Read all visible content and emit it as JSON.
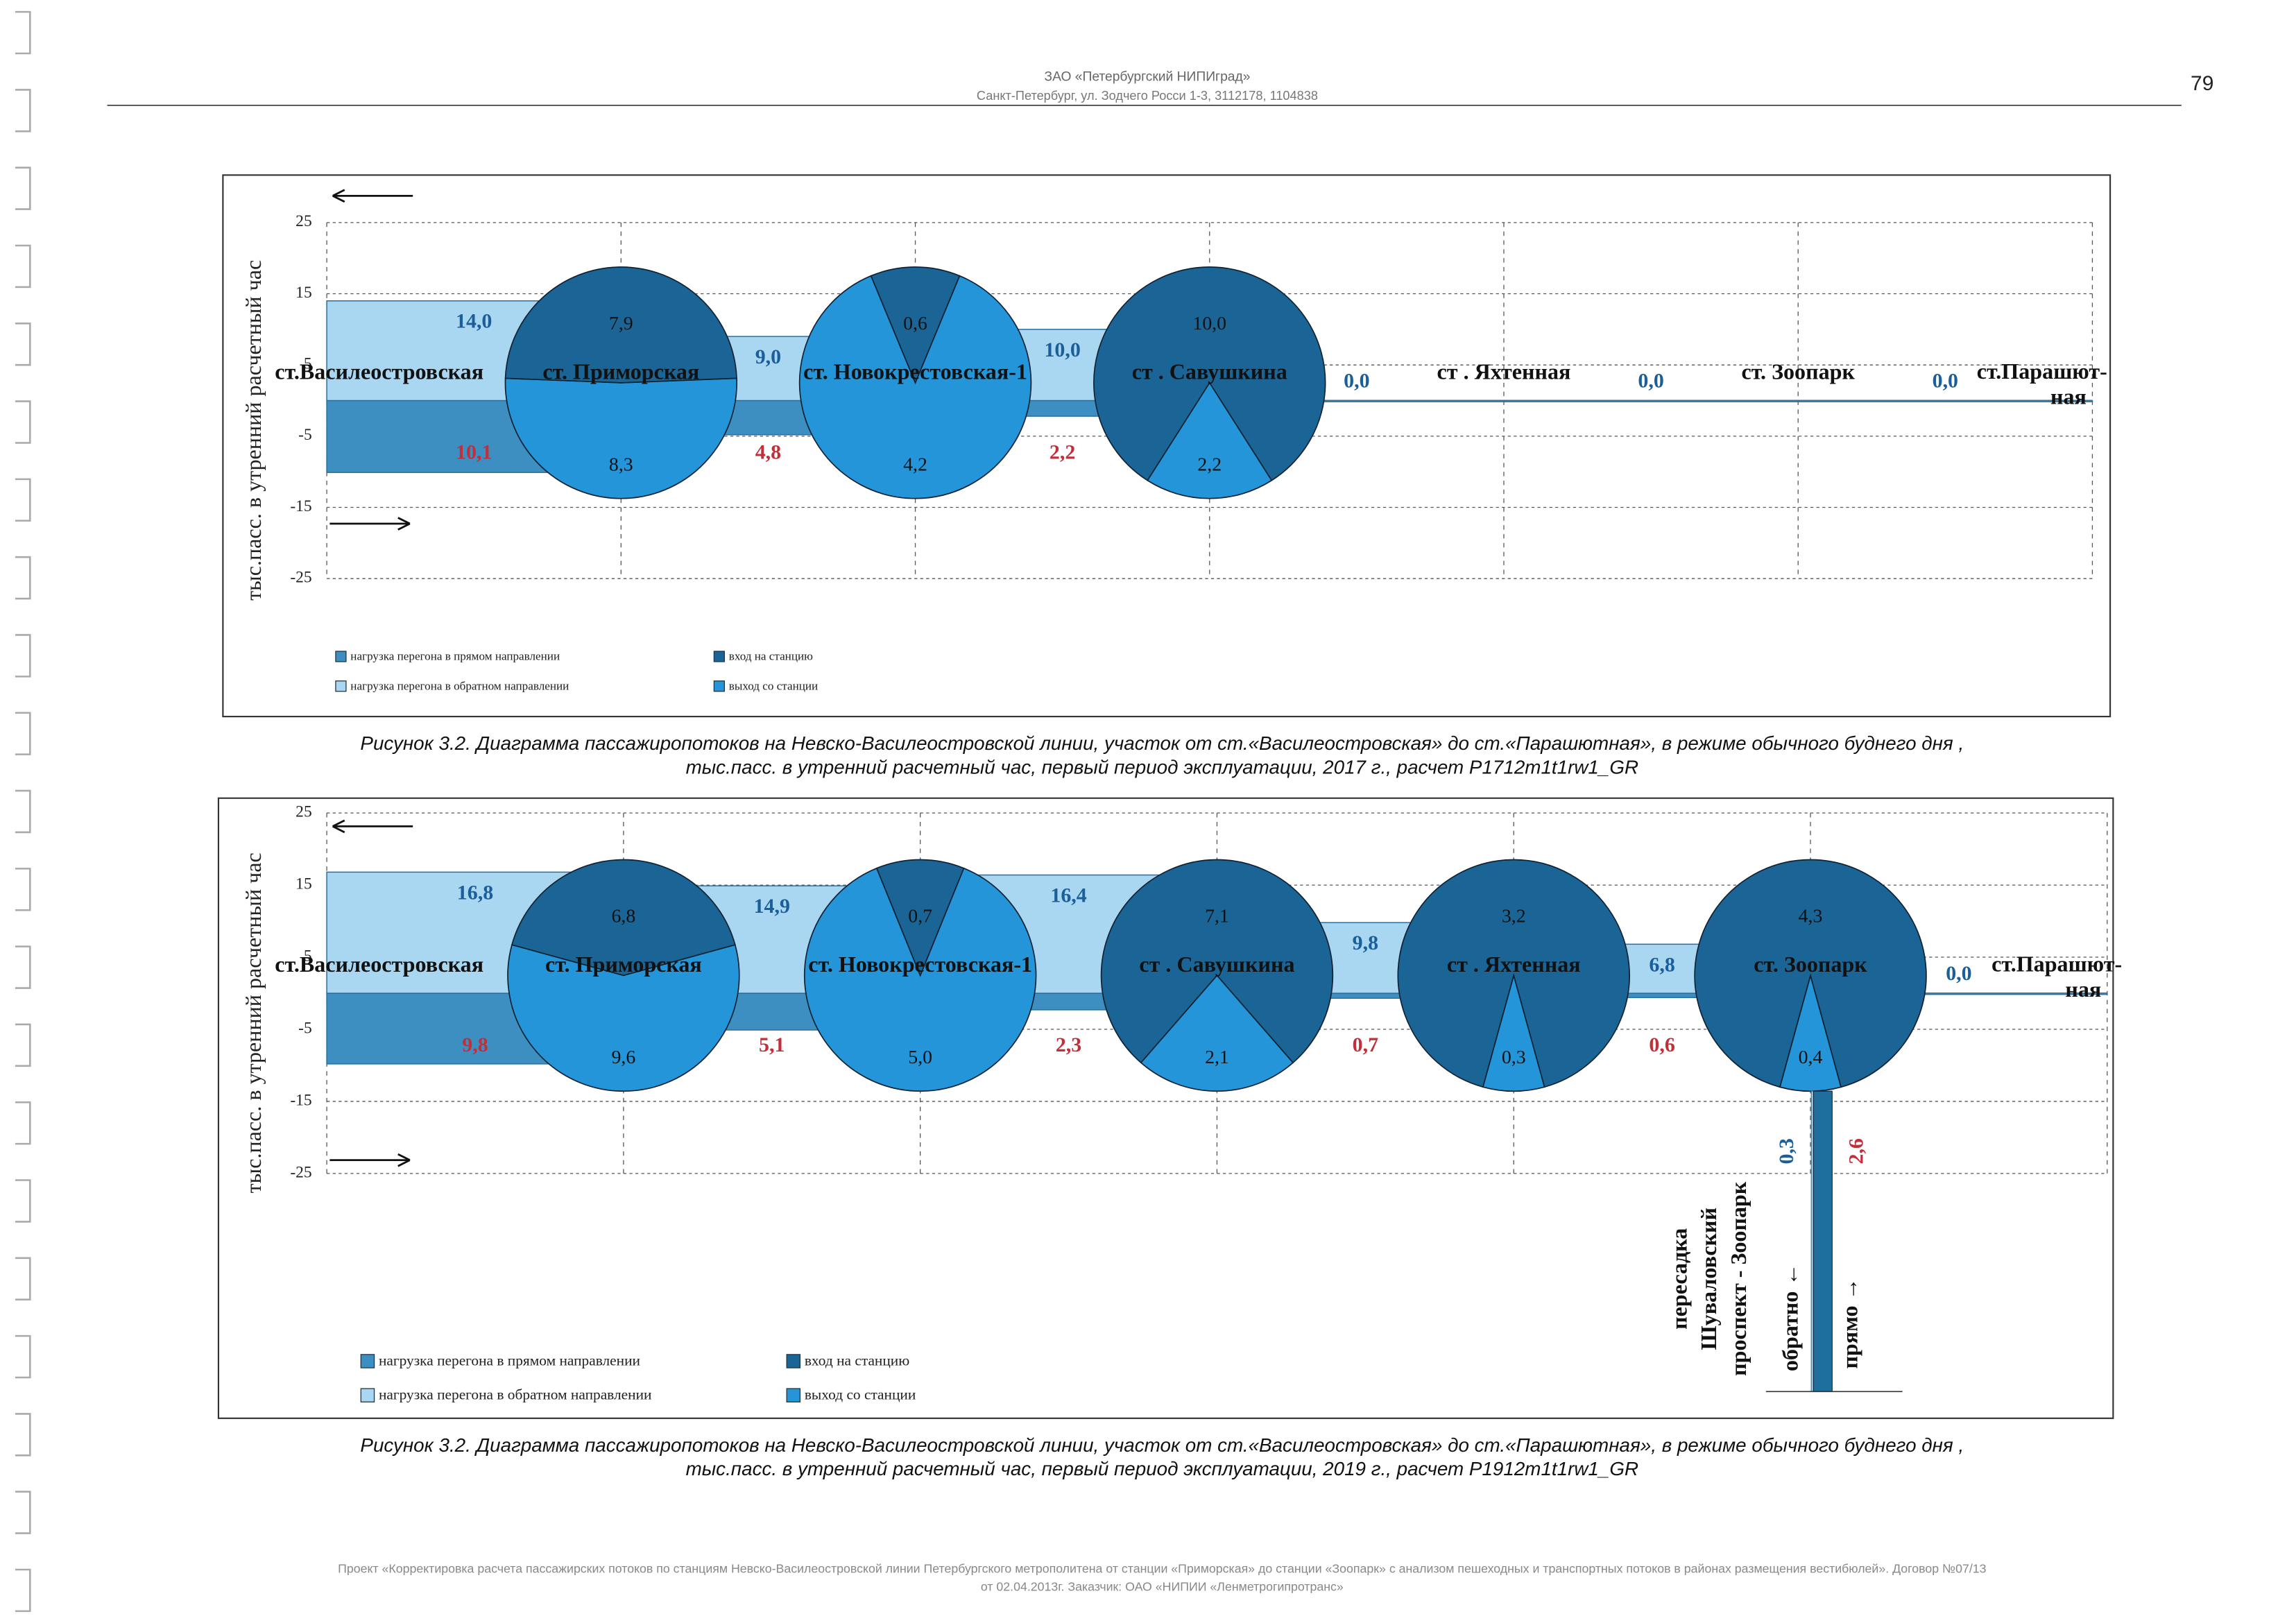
{
  "header": {
    "company": "ЗАО «Петербургский НИПИград»",
    "address": "Санкт-Петербург, ул. Зодчего Росси 1-3, 3112178, 1104838"
  },
  "page_number": "79",
  "chart_data": [
    {
      "type": "flow",
      "ylabel": "тыс.пасс. в утренний расчетный час",
      "ylim": [
        -25,
        25
      ],
      "yticks": [
        25,
        15,
        5,
        -5,
        -15,
        -25
      ],
      "grid": true,
      "categories": [
        "ст.Василеостровская",
        "ст. Приморская",
        "ст. Новокрестовская-1",
        "ст . Савушкина",
        "ст . Яхтенная",
        "ст. Зоопарк",
        "ст.Парашют-\nная"
      ],
      "series": [
        {
          "name": "нагрузка перегона в прямом направлении",
          "color": "#3d8fc2",
          "values": [
            -10.1,
            -4.8,
            -2.2,
            null,
            null,
            null,
            null
          ],
          "value_labels": [
            "10,1",
            "4,8",
            "2,2",
            null,
            null,
            null,
            null
          ]
        },
        {
          "name": "нагрузка перегона в обратном направлении",
          "color": "#a9d6f0",
          "values": [
            14.0,
            9.0,
            10.0,
            0,
            0,
            0,
            null
          ],
          "value_labels": [
            "14,0",
            "9,0",
            "10,0",
            "0,0",
            "0,0",
            "0,0",
            null
          ]
        },
        {
          "name": "вход на станцию",
          "color": "#1b6596",
          "values": [
            null,
            7.9,
            0.6,
            10.0,
            null,
            null,
            null
          ],
          "value_labels": [
            null,
            "7,9",
            "0,6",
            "10,0",
            null,
            null,
            null
          ]
        },
        {
          "name": "выход со станции",
          "color": "#2595da",
          "values": [
            null,
            8.3,
            4.2,
            2.2,
            null,
            null,
            null
          ],
          "value_labels": [
            null,
            "8,3",
            "4,2",
            "2,2",
            null,
            null,
            null
          ]
        }
      ],
      "caption": [
        "Рисунок 3.2. Диаграмма пассажиропотоков на Невско-Василеостровской линии, участок от ст.«Василеостровская» до ст.«Парашютная», в режиме обычного буднего дня ,",
        "тыс.пасс. в утренний расчетный час, первый период эксплуатации, 2017 г., расчет  P1712m1t1rw1_GR"
      ]
    },
    {
      "type": "flow",
      "ylabel": "тыс.пасс. в утренний расчетный час",
      "ylim": [
        -25,
        25
      ],
      "yticks": [
        25,
        15,
        5,
        -5,
        -15,
        -25
      ],
      "grid": true,
      "categories": [
        "ст.Василеостровская",
        "ст. Приморская",
        "ст. Новокрестовская-1",
        "ст . Савушкина",
        "ст . Яхтенная",
        "ст. Зоопарк",
        "ст.Парашют-\nная"
      ],
      "series": [
        {
          "name": "нагрузка перегона в прямом направлении",
          "color": "#3d8fc2",
          "values": [
            -9.8,
            -5.1,
            -2.3,
            -0.7,
            -0.6,
            null,
            null
          ],
          "value_labels": [
            "9,8",
            "5,1",
            "2,3",
            "0,7",
            "0,6",
            null,
            null
          ]
        },
        {
          "name": "нагрузка перегона в обратном направлении",
          "color": "#a9d6f0",
          "values": [
            16.8,
            14.9,
            16.4,
            9.8,
            6.8,
            0,
            null
          ],
          "value_labels": [
            "16,8",
            "14,9",
            "16,4",
            "9,8",
            "6,8",
            "0,0",
            null
          ]
        },
        {
          "name": "вход на станцию",
          "color": "#1b6596",
          "values": [
            null,
            6.8,
            0.7,
            7.1,
            3.2,
            4.3,
            null
          ],
          "value_labels": [
            null,
            "6,8",
            "0,7",
            "7,1",
            "3,2",
            "4,3",
            null
          ]
        },
        {
          "name": "выход со станции",
          "color": "#2595da",
          "values": [
            null,
            9.6,
            5.0,
            2.1,
            0.3,
            0.4,
            null
          ],
          "value_labels": [
            null,
            "9,6",
            "5,0",
            "2,1",
            "0,3",
            "0,4",
            null
          ]
        }
      ],
      "transfer": {
        "title": [
          "пересадка",
          "Шуваловский",
          "проспект - Зоопарк"
        ],
        "back_label": "обратно ←",
        "forward_label": "прямо →",
        "back_value": 0.3,
        "back_value_label": "0,3",
        "forward_value": 2.6,
        "forward_value_label": "2,6"
      },
      "caption": [
        "Рисунок 3.2. Диаграмма пассажиропотоков на Невско-Василеостровской линии, участок от ст.«Василеостровская» до ст.«Парашютная», в режиме обычного буднего дня ,",
        "тыс.пасс. в утренний расчетный час, первый период эксплуатации, 2019 г., расчет  P1912m1t1rw1_GR"
      ]
    }
  ],
  "footer": [
    "Проект «Корректировка расчета пассажирских потоков по станциям Невско-Василеостровской линии Петербургского метрополитена от станции «Приморская» до станции «Зоопарк» с анализом пешеходных и транспортных потоков в районах размещения вестибюлей». Договор №07/13",
    "от 02.04.2013г. Заказчик: ОАО «НИПИИ «Ленметрогипротранс»"
  ]
}
